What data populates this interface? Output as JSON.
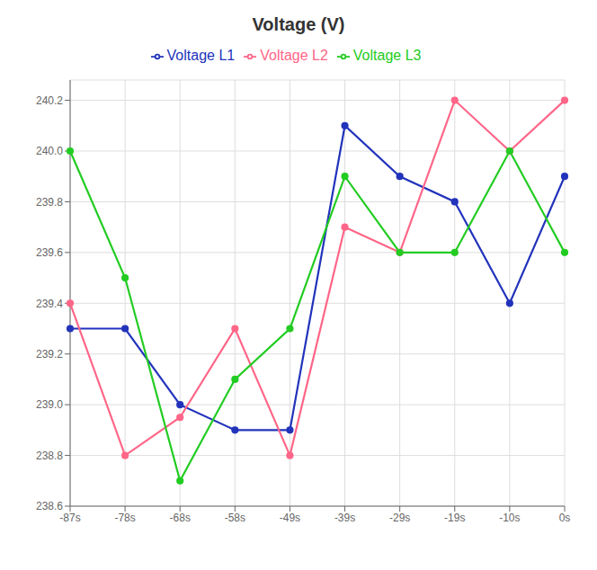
{
  "chart_data": {
    "type": "line",
    "title": "Voltage (V)",
    "categories": [
      "-87s",
      "-78s",
      "-68s",
      "-58s",
      "-49s",
      "-39s",
      "-29s",
      "-19s",
      "-10s",
      "0s"
    ],
    "series": [
      {
        "name": "Voltage L1",
        "color": "#2233bb",
        "values": [
          239.3,
          239.3,
          239.0,
          238.9,
          238.9,
          240.1,
          239.9,
          239.8,
          239.4,
          239.9
        ]
      },
      {
        "name": "Voltage L2",
        "color": "#ff6688",
        "values": [
          239.4,
          238.8,
          238.95,
          239.3,
          238.8,
          239.7,
          239.6,
          240.2,
          240.0,
          240.2
        ]
      },
      {
        "name": "Voltage L3",
        "color": "#22cc22",
        "values": [
          240.0,
          239.5,
          238.7,
          239.1,
          239.3,
          239.9,
          239.6,
          239.6,
          240.0,
          239.6
        ]
      }
    ],
    "ylim": [
      238.6,
      240.28
    ],
    "yticks": [
      238.6,
      238.8,
      {
        "value": 239.0,
        "label": "239.0"
      },
      239.2,
      239.4,
      239.6,
      239.8,
      {
        "value": 240.0,
        "label": "240.0"
      },
      240.2
    ],
    "grid": true,
    "legend": "top",
    "marker": "circle"
  }
}
